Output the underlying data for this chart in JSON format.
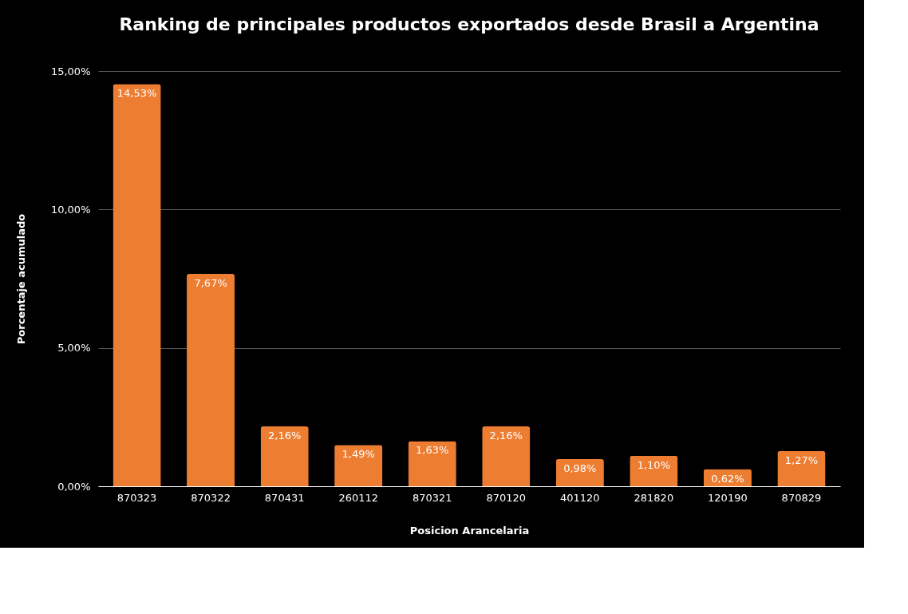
{
  "chart_data": {
    "type": "bar",
    "title": "Ranking de principales productos exportados desde Brasil a Argentina",
    "xlabel": "Posicion Arancelaria",
    "ylabel": "Porcentaje acumulado",
    "categories": [
      "870323",
      "870322",
      "870431",
      "260112",
      "870321",
      "870120",
      "401120",
      "281820",
      "120190",
      "870829"
    ],
    "values": [
      14.53,
      7.67,
      2.16,
      1.49,
      1.63,
      2.16,
      0.98,
      1.1,
      0.62,
      1.27
    ],
    "value_labels": [
      "14,53%",
      "7,67%",
      "2,16%",
      "1,49%",
      "1,63%",
      "2,16%",
      "0,98%",
      "1,10%",
      "0,62%",
      "1,27%"
    ],
    "color": "#ed7d31",
    "ylim": [
      0,
      15
    ],
    "yticks": [
      {
        "value": 0,
        "label": "0,00%"
      },
      {
        "value": 5,
        "label": "5,00%"
      },
      {
        "value": 10,
        "label": "10,00%"
      },
      {
        "value": 15,
        "label": "15,00%"
      }
    ],
    "grid": "y"
  }
}
